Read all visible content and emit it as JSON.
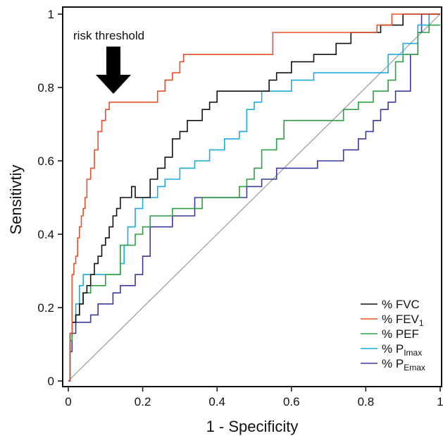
{
  "chart_data": {
    "type": "line",
    "xlabel": "1 - Specificity",
    "ylabel": "Sensitivtiy",
    "xlim": [
      0,
      1
    ],
    "ylim": [
      0,
      1
    ],
    "x_ticks": [
      {
        "value": 0,
        "label": "0"
      },
      {
        "value": 0.2,
        "label": "0.2"
      },
      {
        "value": 0.4,
        "label": "0.4"
      },
      {
        "value": 0.6,
        "label": "0.6"
      },
      {
        "value": 0.8,
        "label": "0.8"
      },
      {
        "value": 1,
        "label": "1"
      }
    ],
    "y_ticks": [
      {
        "value": 0,
        "label": "0"
      },
      {
        "value": 0.2,
        "label": "0.2"
      },
      {
        "value": 0.4,
        "label": "0.4"
      },
      {
        "value": 0.6,
        "label": "0.6"
      },
      {
        "value": 0.8,
        "label": "0.8"
      },
      {
        "value": 1,
        "label": "1"
      }
    ],
    "grid": false,
    "legend_position": "bottom-right",
    "reference_line": {
      "x": [
        0,
        1
      ],
      "y": [
        0,
        1
      ],
      "color": "#999999"
    },
    "annotation": {
      "text": "risk threshold",
      "x": 0.125,
      "y": 0.8
    },
    "series": [
      {
        "name": "% FVC",
        "label_main": "% FVC",
        "label_sub": "",
        "color": "#111111",
        "x": [
          0,
          0.005,
          0.005,
          0.01,
          0.01,
          0.02,
          0.02,
          0.03,
          0.03,
          0.04,
          0.04,
          0.05,
          0.05,
          0.06,
          0.06,
          0.07,
          0.07,
          0.08,
          0.08,
          0.09,
          0.09,
          0.1,
          0.1,
          0.11,
          0.11,
          0.12,
          0.12,
          0.13,
          0.13,
          0.14,
          0.14,
          0.16,
          0.16,
          0.17,
          0.17,
          0.18,
          0.18,
          0.22,
          0.22,
          0.24,
          0.24,
          0.26,
          0.26,
          0.28,
          0.28,
          0.3,
          0.3,
          0.32,
          0.32,
          0.34,
          0.34,
          0.36,
          0.36,
          0.38,
          0.38,
          0.4,
          0.4,
          0.44,
          0.44,
          0.48,
          0.48,
          0.54,
          0.54,
          0.56,
          0.56,
          0.58,
          0.58,
          0.6,
          0.6,
          0.64,
          0.64,
          0.66,
          0.66,
          0.72,
          0.72,
          0.76,
          0.76,
          0.84,
          0.84,
          0.88,
          0.88,
          0.9,
          0.9,
          1
        ],
        "y": [
          0,
          0,
          0.13,
          0.13,
          0.16,
          0.16,
          0.18,
          0.18,
          0.21,
          0.21,
          0.24,
          0.24,
          0.26,
          0.26,
          0.29,
          0.29,
          0.32,
          0.32,
          0.34,
          0.34,
          0.37,
          0.37,
          0.39,
          0.39,
          0.42,
          0.42,
          0.45,
          0.45,
          0.47,
          0.47,
          0.5,
          0.5,
          0.5,
          0.5,
          0.53,
          0.53,
          0.5,
          0.5,
          0.55,
          0.55,
          0.58,
          0.58,
          0.61,
          0.61,
          0.66,
          0.66,
          0.68,
          0.68,
          0.71,
          0.71,
          0.71,
          0.71,
          0.74,
          0.74,
          0.76,
          0.76,
          0.79,
          0.79,
          0.79,
          0.79,
          0.79,
          0.79,
          0.82,
          0.82,
          0.84,
          0.84,
          0.84,
          0.84,
          0.87,
          0.87,
          0.87,
          0.87,
          0.89,
          0.89,
          0.92,
          0.92,
          0.95,
          0.95,
          0.97,
          0.97,
          0.97,
          0.97,
          1,
          1
        ]
      },
      {
        "name": "% FEV1",
        "label_main": "% FEV",
        "label_sub": "1",
        "color": "#e8502a",
        "x": [
          0,
          0.005,
          0.005,
          0.01,
          0.01,
          0.015,
          0.015,
          0.02,
          0.02,
          0.025,
          0.025,
          0.03,
          0.03,
          0.035,
          0.035,
          0.04,
          0.04,
          0.045,
          0.045,
          0.05,
          0.05,
          0.06,
          0.06,
          0.07,
          0.07,
          0.08,
          0.08,
          0.09,
          0.09,
          0.1,
          0.1,
          0.11,
          0.11,
          0.12,
          0.12,
          0.13,
          0.13,
          0.24,
          0.24,
          0.26,
          0.26,
          0.28,
          0.28,
          0.3,
          0.3,
          0.31,
          0.31,
          0.55,
          0.55,
          0.75,
          0.75,
          0.83,
          0.83,
          0.87,
          0.87,
          1
        ],
        "y": [
          0,
          0,
          0.13,
          0.13,
          0.29,
          0.29,
          0.32,
          0.32,
          0.34,
          0.34,
          0.39,
          0.39,
          0.42,
          0.42,
          0.45,
          0.45,
          0.47,
          0.47,
          0.5,
          0.5,
          0.55,
          0.55,
          0.58,
          0.58,
          0.63,
          0.63,
          0.68,
          0.68,
          0.71,
          0.71,
          0.74,
          0.74,
          0.76,
          0.76,
          0.76,
          0.76,
          0.76,
          0.76,
          0.79,
          0.79,
          0.82,
          0.82,
          0.84,
          0.84,
          0.87,
          0.87,
          0.89,
          0.89,
          0.95,
          0.95,
          0.95,
          0.95,
          0.97,
          0.97,
          1,
          1
        ]
      },
      {
        "name": "% PEF",
        "label_main": "% PEF",
        "label_sub": "",
        "color": "#2ea043",
        "x": [
          0,
          0.005,
          0.005,
          0.01,
          0.01,
          0.02,
          0.02,
          0.03,
          0.03,
          0.04,
          0.04,
          0.06,
          0.06,
          0.1,
          0.1,
          0.14,
          0.14,
          0.18,
          0.18,
          0.2,
          0.2,
          0.22,
          0.22,
          0.28,
          0.28,
          0.32,
          0.32,
          0.36,
          0.36,
          0.4,
          0.4,
          0.46,
          0.46,
          0.48,
          0.48,
          0.5,
          0.5,
          0.52,
          0.52,
          0.56,
          0.56,
          0.58,
          0.58,
          0.74,
          0.74,
          0.78,
          0.78,
          0.82,
          0.82,
          0.86,
          0.86,
          0.88,
          0.88,
          0.9,
          0.9,
          0.94,
          0.94,
          0.97,
          0.97,
          1
        ],
        "y": [
          0,
          0,
          0.11,
          0.11,
          0.16,
          0.16,
          0.18,
          0.18,
          0.21,
          0.21,
          0.24,
          0.24,
          0.26,
          0.26,
          0.29,
          0.29,
          0.37,
          0.37,
          0.4,
          0.4,
          0.42,
          0.42,
          0.45,
          0.45,
          0.47,
          0.47,
          0.47,
          0.47,
          0.5,
          0.5,
          0.5,
          0.5,
          0.53,
          0.53,
          0.55,
          0.55,
          0.58,
          0.58,
          0.63,
          0.63,
          0.66,
          0.66,
          0.71,
          0.71,
          0.74,
          0.74,
          0.76,
          0.76,
          0.79,
          0.79,
          0.82,
          0.82,
          0.87,
          0.87,
          0.89,
          0.89,
          0.95,
          0.95,
          0.97,
          0.97
        ]
      },
      {
        "name": "% PImax",
        "label_main": "% P",
        "label_sub": "Imax",
        "color": "#1eaadc",
        "x": [
          0,
          0.005,
          0.005,
          0.01,
          0.01,
          0.02,
          0.02,
          0.03,
          0.03,
          0.04,
          0.04,
          0.14,
          0.14,
          0.15,
          0.15,
          0.16,
          0.16,
          0.18,
          0.18,
          0.2,
          0.2,
          0.24,
          0.24,
          0.26,
          0.26,
          0.3,
          0.3,
          0.34,
          0.34,
          0.38,
          0.38,
          0.42,
          0.42,
          0.46,
          0.46,
          0.48,
          0.48,
          0.5,
          0.5,
          0.52,
          0.52,
          0.6,
          0.6,
          0.66,
          0.66,
          0.82,
          0.82,
          0.86,
          0.86,
          0.9,
          0.9,
          0.94,
          0.94,
          0.97,
          0.97,
          1
        ],
        "y": [
          0,
          0,
          0.13,
          0.13,
          0.16,
          0.16,
          0.21,
          0.21,
          0.26,
          0.26,
          0.29,
          0.29,
          0.32,
          0.32,
          0.37,
          0.37,
          0.42,
          0.42,
          0.47,
          0.47,
          0.5,
          0.5,
          0.53,
          0.53,
          0.55,
          0.55,
          0.58,
          0.58,
          0.6,
          0.6,
          0.63,
          0.63,
          0.66,
          0.66,
          0.68,
          0.68,
          0.74,
          0.74,
          0.76,
          0.76,
          0.79,
          0.79,
          0.82,
          0.82,
          0.84,
          0.84,
          0.84,
          0.84,
          0.89,
          0.89,
          0.92,
          0.92,
          0.97,
          0.97,
          1,
          1
        ]
      },
      {
        "name": "% PEmax",
        "label_main": "% P",
        "label_sub": "Emax",
        "color": "#3a3a9e",
        "x": [
          0,
          0.005,
          0.005,
          0.01,
          0.01,
          0.02,
          0.02,
          0.06,
          0.06,
          0.08,
          0.08,
          0.12,
          0.12,
          0.14,
          0.14,
          0.18,
          0.18,
          0.2,
          0.2,
          0.22,
          0.22,
          0.28,
          0.28,
          0.34,
          0.34,
          0.44,
          0.44,
          0.48,
          0.48,
          0.52,
          0.52,
          0.56,
          0.56,
          0.67,
          0.67,
          0.74,
          0.74,
          0.78,
          0.78,
          0.8,
          0.8,
          0.82,
          0.82,
          0.84,
          0.84,
          0.86,
          0.86,
          0.88,
          0.88,
          0.92,
          0.92,
          0.94,
          0.94,
          0.95,
          0.95,
          1
        ],
        "y": [
          0,
          0,
          0.08,
          0.08,
          0.13,
          0.13,
          0.16,
          0.16,
          0.18,
          0.18,
          0.21,
          0.21,
          0.24,
          0.24,
          0.26,
          0.26,
          0.29,
          0.29,
          0.34,
          0.34,
          0.42,
          0.42,
          0.45,
          0.45,
          0.5,
          0.5,
          0.5,
          0.5,
          0.53,
          0.53,
          0.55,
          0.55,
          0.58,
          0.58,
          0.6,
          0.6,
          0.63,
          0.63,
          0.66,
          0.66,
          0.68,
          0.68,
          0.71,
          0.71,
          0.74,
          0.74,
          0.76,
          0.76,
          0.79,
          0.79,
          0.89,
          0.89,
          0.95,
          0.95,
          1,
          1
        ]
      }
    ]
  }
}
